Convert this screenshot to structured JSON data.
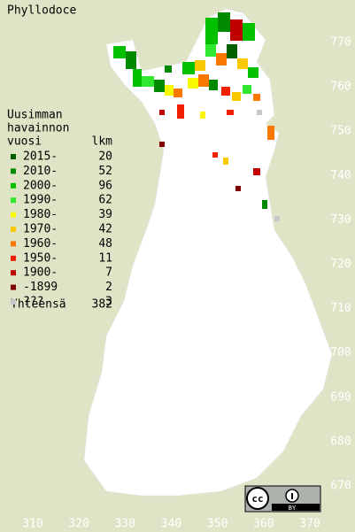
{
  "title": "Phyllodoce",
  "legend": {
    "heading": [
      "Uusimman",
      "havainnon"
    ],
    "year_label": "vuosi",
    "count_label": "lkm",
    "items": [
      {
        "label": "2015-",
        "count": 20,
        "color": "#006000"
      },
      {
        "label": "2010-",
        "count": 52,
        "color": "#008a00"
      },
      {
        "label": "2000-",
        "count": 96,
        "color": "#00c000"
      },
      {
        "label": "1990-",
        "count": 62,
        "color": "#30e830"
      },
      {
        "label": "1980-",
        "count": 39,
        "color": "#f8f800"
      },
      {
        "label": "1970-",
        "count": 42,
        "color": "#f8c800"
      },
      {
        "label": "1960-",
        "count": 48,
        "color": "#f87800"
      },
      {
        "label": "1950-",
        "count": 11,
        "color": "#f02000"
      },
      {
        "label": "1900-",
        "count": 7,
        "color": "#c00000"
      },
      {
        "label": "-1899",
        "count": 2,
        "color": "#800000"
      },
      {
        "label": "???",
        "count": 3,
        "color": "#c8c8c8"
      }
    ],
    "total_label": "Yhteensä",
    "total": 382
  },
  "x_axis": {
    "labels": [
      310,
      320,
      330,
      340,
      350,
      360,
      370
    ]
  },
  "y_axis": {
    "labels": [
      670,
      680,
      690,
      700,
      710,
      720,
      730,
      740,
      750,
      760,
      770
    ]
  },
  "license": {
    "label": "BY"
  }
}
